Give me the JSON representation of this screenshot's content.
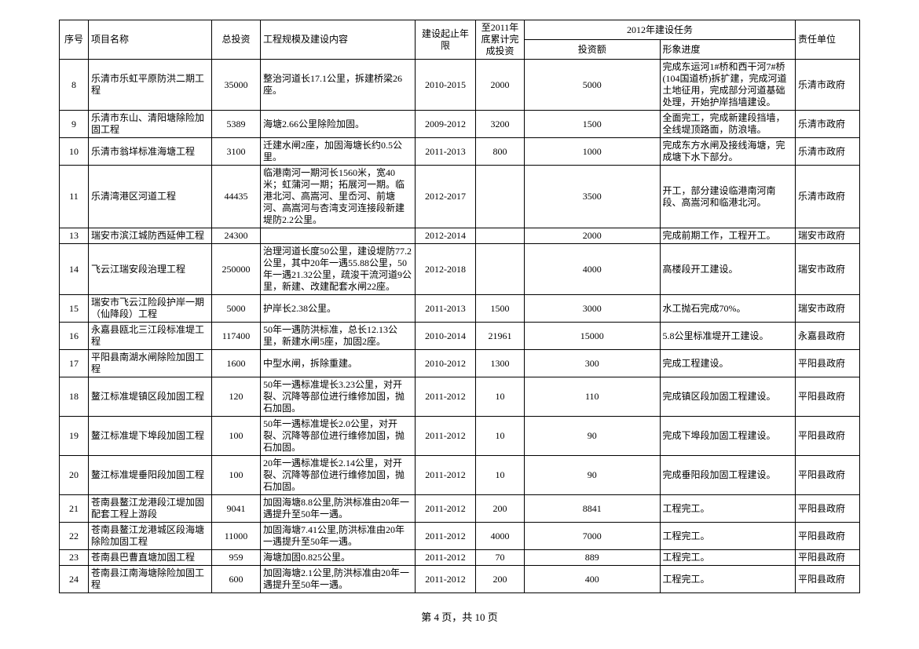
{
  "header": {
    "seq": "序号",
    "name": "项目名称",
    "inv": "总投资",
    "scale": "工程规模及建设内容",
    "period": "建设起止年限",
    "cum": "至2011年底累计完成投资",
    "task": "2012年建设任务",
    "tinv": "投资额",
    "prog": "形象进度",
    "unit": "责任单位"
  },
  "rows": [
    {
      "seq": "8",
      "name": "乐清市乐虹平原防洪二期工程",
      "inv": "35000",
      "scale": "整治河道长17.1公里，拆建桥梁26座。",
      "period": "2010-2015",
      "cum": "2000",
      "tinv": "5000",
      "prog": "完成东运河1#桥和西干河7#桥(104国道桥)拆扩建，完成河道土地征用，完成部分河道基础处理，开始护岸挡墙建设。",
      "unit": "乐清市政府"
    },
    {
      "seq": "9",
      "name": "乐清市东山、清阳塘除险加固工程",
      "inv": "5389",
      "scale": "海塘2.66公里除险加固。",
      "period": "2009-2012",
      "cum": "3200",
      "tinv": "1500",
      "prog": "全面完工，完成新建段挡墙，全线堤顶路面，防浪墙。",
      "unit": "乐清市政府"
    },
    {
      "seq": "10",
      "name": "乐清市翁垟标准海塘工程",
      "inv": "3100",
      "scale": "迁建水闸2座，加固海塘长约0.5公里。",
      "period": "2011-2013",
      "cum": "800",
      "tinv": "1000",
      "prog": "完成东方水闸及接线海塘，完成塘下水下部分。",
      "unit": "乐清市政府"
    },
    {
      "seq": "11",
      "name": "乐清湾港区河道工程",
      "inv": "44435",
      "scale": "临港南河一期河长1560米，宽40米；虹蒲河一期；拓展河一期。临港北河、高嵩河、里岙河、前塘河、高嵩河与杏湾支河连接段新建堤防2.2公里。",
      "period": "2012-2017",
      "cum": "",
      "tinv": "3500",
      "prog": "开工，部分建设临港南河南段、高嵩河和临港北河。",
      "unit": "乐清市政府"
    },
    {
      "seq": "13",
      "name": "瑞安市滨江城防西延伸工程",
      "inv": "24300",
      "scale": "",
      "period": "2012-2014",
      "cum": "",
      "tinv": "2000",
      "prog": "完成前期工作，工程开工。",
      "unit": "瑞安市政府"
    },
    {
      "seq": "14",
      "name": "飞云江瑞安段治理工程",
      "inv": "250000",
      "scale": "治理河道长度50公里，建设堤防77.2公里，其中20年一遇55.88公里，50年一遇21.32公里，疏浚干流河道9公里，新建、改建配套水闸22座。",
      "period": "2012-2018",
      "cum": "",
      "tinv": "4000",
      "prog": "高楼段开工建设。",
      "unit": "瑞安市政府"
    },
    {
      "seq": "15",
      "name": "瑞安市飞云江险段护岸一期（仙降段）工程",
      "inv": "5000",
      "scale": "护岸长2.38公里。",
      "period": "2011-2013",
      "cum": "1500",
      "tinv": "3000",
      "prog": "水工抛石完成70%。",
      "unit": "瑞安市政府"
    },
    {
      "seq": "16",
      "name": "永嘉县瓯北三江段标准堤工程",
      "inv": "117400",
      "scale": "50年一遇防洪标准，总长12.13公里，新建水闸5座，加固2座。",
      "period": "2010-2014",
      "cum": "21961",
      "tinv": "15000",
      "prog": "5.8公里标准堤开工建设。",
      "unit": "永嘉县政府"
    },
    {
      "seq": "17",
      "name": "平阳县南湖水闸除险加固工程",
      "inv": "1600",
      "scale": "中型水闸，拆除重建。",
      "period": "2010-2012",
      "cum": "1300",
      "tinv": "300",
      "prog": "完成工程建设。",
      "unit": "平阳县政府"
    },
    {
      "seq": "18",
      "name": "鳌江标准堤镇区段加固工程",
      "inv": "120",
      "scale": "50年一遇标准堤长3.23公里，对开裂、沉降等部位进行维修加固，抛石加固。",
      "period": "2011-2012",
      "cum": "10",
      "tinv": "110",
      "prog": "完成镇区段加固工程建设。",
      "unit": "平阳县政府"
    },
    {
      "seq": "19",
      "name": "鳌江标准堤下埠段加固工程",
      "inv": "100",
      "scale": "50年一遇标准堤长2.0公里，对开裂、沉降等部位进行维修加固，抛石加固。",
      "period": "2011-2012",
      "cum": "10",
      "tinv": "90",
      "prog": "完成下埠段加固工程建设。",
      "unit": "平阳县政府"
    },
    {
      "seq": "20",
      "name": "鳌江标准堤垂阳段加固工程",
      "inv": "100",
      "scale": "20年一遇标准堤长2.14公里，对开裂、沉降等部位进行维修加固，抛石加固。",
      "period": "2011-2012",
      "cum": "10",
      "tinv": "90",
      "prog": "完成垂阳段加固工程建设。",
      "unit": "平阳县政府"
    },
    {
      "seq": "21",
      "name": "苍南县鳌江龙港段江堤加固配套工程上游段",
      "inv": "9041",
      "scale": "加固海塘8.8公里,防洪标准由20年一遇提升至50年一遇。",
      "period": "2011-2012",
      "cum": "200",
      "tinv": "8841",
      "prog": "工程完工。",
      "unit": "平阳县政府"
    },
    {
      "seq": "22",
      "name": "苍南县鳌江龙港城区段海塘除险加固工程",
      "inv": "11000",
      "scale": "加固海塘7.41公里,防洪标准由20年一遇提升至50年一遇。",
      "period": "2011-2012",
      "cum": "4000",
      "tinv": "7000",
      "prog": "工程完工。",
      "unit": "平阳县政府"
    },
    {
      "seq": "23",
      "name": "苍南县巴曹直塘加固工程",
      "inv": "959",
      "scale": "海塘加固0.825公里。",
      "period": "2011-2012",
      "cum": "70",
      "tinv": "889",
      "prog": "工程完工。",
      "unit": "平阳县政府"
    },
    {
      "seq": "24",
      "name": "苍南县江南海塘除险加固工程",
      "inv": "600",
      "scale": "加固海塘2.1公里,防洪标准由20年一遇提升至50年一遇。",
      "period": "2011-2012",
      "cum": "200",
      "tinv": "400",
      "prog": "工程完工。",
      "unit": "平阳县政府"
    }
  ],
  "footer": "第 4 页，共 10 页"
}
